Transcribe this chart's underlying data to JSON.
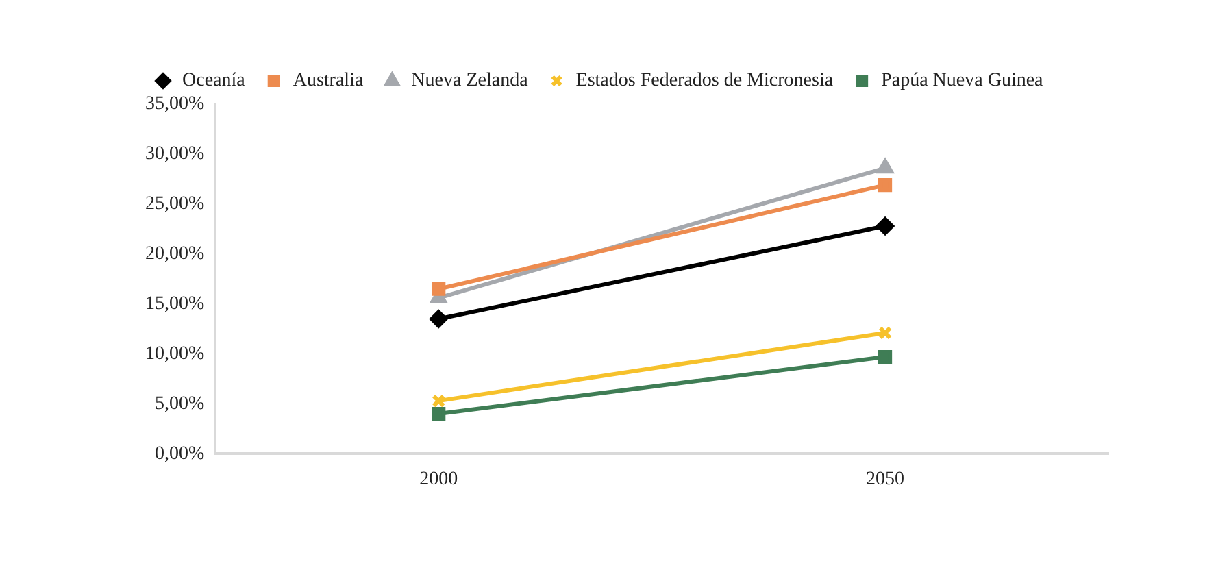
{
  "chart_data": {
    "type": "line",
    "categories": [
      "2000",
      "2050"
    ],
    "series": [
      {
        "name": "Oceanía",
        "color": "#000000",
        "marker": "diamond",
        "values": [
          13.5,
          22.8
        ]
      },
      {
        "name": "Australia",
        "color": "#ed8b4f",
        "marker": "square",
        "values": [
          16.5,
          26.9
        ]
      },
      {
        "name": "Nueva Zelanda",
        "color": "#a5a8ad",
        "marker": "triangle",
        "values": [
          15.6,
          28.6
        ]
      },
      {
        "name": "Estados Federados de Micronesia",
        "color": "#f6c12b",
        "marker": "cross",
        "values": [
          5.3,
          12.1
        ]
      },
      {
        "name": "Papúa Nueva Guinea",
        "color": "#3f7d55",
        "marker": "square",
        "values": [
          4.0,
          9.7
        ]
      }
    ],
    "ylim": [
      0,
      35
    ],
    "yticks": [
      {
        "value": 0,
        "label": "0,00%"
      },
      {
        "value": 5,
        "label": "5,00%"
      },
      {
        "value": 10,
        "label": "10,00%"
      },
      {
        "value": 15,
        "label": "15,00%"
      },
      {
        "value": 20,
        "label": "20,00%"
      },
      {
        "value": 25,
        "label": "25,00%"
      },
      {
        "value": 30,
        "label": "30,00%"
      },
      {
        "value": 35,
        "label": "35,00%"
      }
    ],
    "grid": false,
    "legend": "top"
  }
}
